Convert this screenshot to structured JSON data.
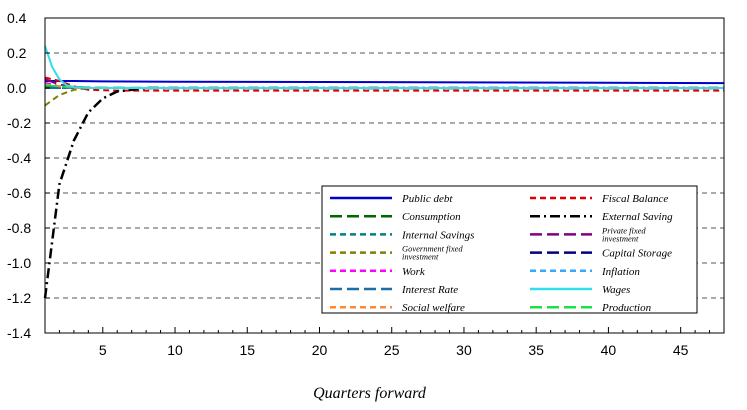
{
  "chart_data": {
    "type": "line",
    "title": "",
    "xlabel": "Quarters forward",
    "ylabel": "",
    "xlim": [
      1,
      48
    ],
    "ylim": [
      -1.4,
      0.4
    ],
    "x_ticks": [
      5,
      10,
      15,
      20,
      25,
      30,
      35,
      40,
      45
    ],
    "y_ticks": [
      0.4,
      0.2,
      0.0,
      -0.2,
      -0.4,
      -0.6,
      -0.8,
      -1.0,
      -1.2,
      -1.4
    ],
    "y_tick_labels": [
      "0.4",
      "0.2",
      "0.0",
      "-0.2",
      "-0.4",
      "-0.6",
      "-0.8",
      "-1.0",
      "-1.2",
      "-1.4"
    ],
    "grid": "horizontal dashed",
    "legend_position": "bottom-right, inside plot",
    "series": [
      {
        "name": "Public debt",
        "color": "#0000cc",
        "dash": "solid",
        "x": [
          1,
          2,
          3,
          5,
          10,
          20,
          30,
          40,
          48
        ],
        "y": [
          0.04,
          0.04,
          0.04,
          0.038,
          0.036,
          0.034,
          0.032,
          0.03,
          0.028
        ]
      },
      {
        "name": "Fiscal Balance",
        "color": "#e00000",
        "dash": "dash",
        "x": [
          1,
          2,
          3,
          4,
          6,
          10,
          20,
          48
        ],
        "y": [
          0.06,
          0.04,
          0.01,
          -0.01,
          -0.015,
          -0.015,
          -0.015,
          -0.015
        ]
      },
      {
        "name": "Consumption",
        "color": "#006600",
        "dash": "longdash",
        "x": [
          1,
          3,
          5,
          10,
          48
        ],
        "y": [
          0.01,
          0.005,
          0.002,
          0.0,
          0.0
        ]
      },
      {
        "name": "External Saving",
        "color": "#000000",
        "dash": "dashdot",
        "x": [
          1,
          2,
          3,
          4,
          5,
          6,
          7,
          8,
          10,
          48
        ],
        "y": [
          -1.2,
          -0.55,
          -0.3,
          -0.14,
          -0.06,
          -0.02,
          -0.01,
          0.0,
          0.0,
          0.0
        ]
      },
      {
        "name": "Internal Savings",
        "color": "#008080",
        "dash": "dash",
        "x": [
          1,
          3,
          5,
          10,
          48
        ],
        "y": [
          0.0,
          0.0,
          0.0,
          0.0,
          0.0
        ]
      },
      {
        "name": "Private fixed investment",
        "color": "#800080",
        "dash": "longdash",
        "x": [
          1,
          2,
          3,
          5,
          10,
          48
        ],
        "y": [
          0.05,
          0.02,
          0.005,
          0.0,
          0.0,
          0.0
        ]
      },
      {
        "name": "Government fixed investment",
        "color": "#808000",
        "dash": "dash",
        "x": [
          1,
          2,
          3,
          4,
          6,
          48
        ],
        "y": [
          -0.1,
          -0.04,
          -0.01,
          0.0,
          0.0,
          0.0
        ]
      },
      {
        "name": "Capital Storage",
        "color": "#000080",
        "dash": "longdash",
        "x": [
          1,
          5,
          10,
          48
        ],
        "y": [
          0.0,
          0.0,
          0.0,
          0.0
        ]
      },
      {
        "name": "Work",
        "color": "#ff00ff",
        "dash": "dash",
        "x": [
          1,
          2,
          3,
          5,
          48
        ],
        "y": [
          0.03,
          0.01,
          0.003,
          0.0,
          0.0
        ]
      },
      {
        "name": "Inflation",
        "color": "#33aaff",
        "dash": "dash",
        "x": [
          1,
          2,
          3,
          5,
          48
        ],
        "y": [
          0.02,
          0.01,
          0.003,
          0.0,
          0.0
        ]
      },
      {
        "name": "Interest Rate",
        "color": "#1a6faa",
        "dash": "longdash",
        "x": [
          1,
          3,
          5,
          48
        ],
        "y": [
          0.0,
          0.0,
          0.0,
          0.0
        ]
      },
      {
        "name": "Wages",
        "color": "#33ddee",
        "dash": "solid",
        "x": [
          1,
          1.5,
          2,
          2.5,
          3,
          4,
          5,
          48
        ],
        "y": [
          0.24,
          0.12,
          0.05,
          0.015,
          0.005,
          0.0,
          0.0,
          0.0
        ]
      },
      {
        "name": "Social welfare",
        "color": "#ff8833",
        "dash": "dash",
        "x": [
          1,
          2,
          3,
          5,
          48
        ],
        "y": [
          0.02,
          0.01,
          0.0,
          0.0,
          0.0
        ]
      },
      {
        "name": "Production",
        "color": "#22dd44",
        "dash": "longdash",
        "x": [
          1,
          2,
          3,
          5,
          10,
          48
        ],
        "y": [
          0.015,
          0.01,
          0.005,
          0.002,
          0.0,
          0.0
        ]
      }
    ]
  }
}
